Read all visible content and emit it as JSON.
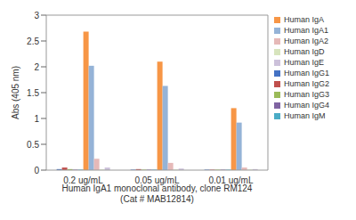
{
  "chart_data": {
    "type": "bar",
    "categories": [
      "0.2 ug/mL",
      "0.05 ug/mL",
      "0.01 ug/mL"
    ],
    "x_label": "Human IgA1 monoclonal antibody, clone RM124\n(Cat # MAB12814)",
    "y_label": "Abs (405 nm)",
    "ylim": [
      0,
      3
    ],
    "yticks": [
      0,
      0.5,
      1,
      1.5,
      2,
      2.5,
      3
    ],
    "grid": false,
    "legend": "right",
    "series": [
      {
        "name": "Human IgG1",
        "color": "#4472c4",
        "values": [
          0.02,
          0.01,
          0.01
        ]
      },
      {
        "name": "Human IgG2",
        "color": "#c0504d",
        "values": [
          0.05,
          0.02,
          0.01
        ]
      },
      {
        "name": "Human IgG3",
        "color": "#9bbb59",
        "values": [
          0.02,
          0.01,
          0.01
        ]
      },
      {
        "name": "Human IgG4",
        "color": "#8064a2",
        "values": [
          0.01,
          0.01,
          0.01
        ]
      },
      {
        "name": "Human IgM",
        "color": "#4bacc6",
        "values": [
          0.01,
          0.01,
          0.01
        ]
      },
      {
        "name": "Human IgA",
        "color": "#f79646",
        "values": [
          2.68,
          2.1,
          1.2
        ]
      },
      {
        "name": "Human IgA1",
        "color": "#95b3d7",
        "values": [
          2.02,
          1.63,
          0.92
        ]
      },
      {
        "name": "Human IgA2",
        "color": "#e6b9b8",
        "values": [
          0.22,
          0.14,
          0.05
        ]
      },
      {
        "name": "Human IgD",
        "color": "#d7e4bd",
        "values": [
          0.01,
          0.01,
          0.01
        ]
      },
      {
        "name": "Human IgE",
        "color": "#ccc1da",
        "values": [
          0.05,
          0.03,
          0.02
        ]
      }
    ]
  }
}
